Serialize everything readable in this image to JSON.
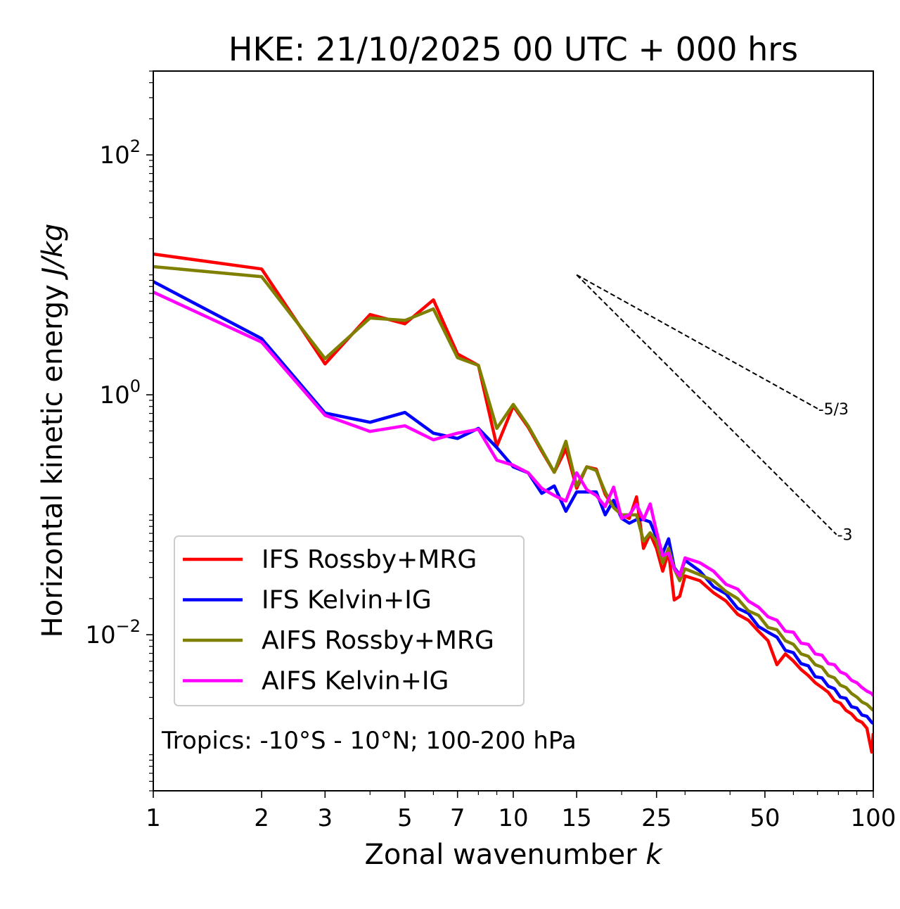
{
  "chart_data": {
    "type": "line",
    "title": "HKE: 21/10/2025 00 UTC + 000 hrs",
    "xlabel": "Zonal wavenumber k",
    "xlabel_main": "Zonal wavenumber ",
    "xlabel_var": "k",
    "ylabel_main": "Horizontal kinetic energy ",
    "ylabel_unit": "J/kg",
    "xscale": "log",
    "yscale": "log",
    "xlim": [
      1,
      100
    ],
    "ylim": [
      0.0005,
      500
    ],
    "xticks": [
      1,
      2,
      3,
      5,
      7,
      10,
      15,
      25,
      50,
      100
    ],
    "xtick_labels": [
      "1",
      "2",
      "3",
      "5",
      "7",
      "10",
      "15",
      "25",
      "50",
      "100"
    ],
    "yticks": [
      0.01,
      1,
      100
    ],
    "ytick_labels": [
      {
        "base": "10",
        "exp": "−2"
      },
      {
        "base": "10",
        "exp": "0"
      },
      {
        "base": "10",
        "exp": "2"
      }
    ],
    "annotation": "Tropics: -10°S - 10°N; 100-200 hPa",
    "legend_position": "lower-left",
    "x": [
      1,
      2,
      3,
      4,
      5,
      6,
      7,
      8,
      9,
      10,
      11,
      12,
      13,
      14,
      15,
      16,
      17,
      18,
      19,
      20,
      21,
      22,
      23,
      24,
      25,
      26,
      27,
      28,
      29,
      30,
      33,
      36,
      39,
      42,
      45,
      48,
      51,
      54,
      57,
      60,
      63,
      66,
      69,
      72,
      75,
      78,
      81,
      84,
      87,
      90,
      93,
      96,
      99,
      100
    ],
    "series": [
      {
        "name": "IFS Rossby+MRG",
        "color": "#ff0000",
        "values": [
          14.9,
          11.2,
          1.81,
          4.67,
          3.91,
          6.19,
          2.19,
          1.76,
          0.373,
          0.805,
          0.537,
          0.339,
          0.226,
          0.355,
          0.166,
          0.251,
          0.24,
          0.148,
          0.115,
          0.1,
          0.0933,
          0.141,
          0.0525,
          0.0692,
          0.0525,
          0.0339,
          0.049,
          0.0195,
          0.0209,
          0.0309,
          0.0282,
          0.0224,
          0.0191,
          0.0148,
          0.0132,
          0.0107,
          0.00891,
          0.00562,
          0.00692,
          0.00603,
          0.00513,
          0.00457,
          0.00398,
          0.00363,
          0.00331,
          0.00282,
          0.00269,
          0.00234,
          0.00219,
          0.00195,
          0.00186,
          0.00166,
          0.00105,
          0.00151
        ]
      },
      {
        "name": "IFS Kelvin+IG",
        "color": "#0000ff",
        "values": [
          8.79,
          2.94,
          0.705,
          0.59,
          0.713,
          0.479,
          0.433,
          0.525,
          0.363,
          0.251,
          0.224,
          0.151,
          0.174,
          0.107,
          0.155,
          0.155,
          0.155,
          0.1,
          0.132,
          0.0933,
          0.0851,
          0.0912,
          0.0912,
          0.0871,
          0.0646,
          0.0479,
          0.0631,
          0.0363,
          0.0316,
          0.0417,
          0.0339,
          0.0251,
          0.0219,
          0.0166,
          0.0151,
          0.0117,
          0.0105,
          0.00955,
          0.00741,
          0.00708,
          0.00575,
          0.0055,
          0.00447,
          0.00437,
          0.00372,
          0.00355,
          0.00302,
          0.00295,
          0.00251,
          0.00245,
          0.00214,
          0.00209,
          0.00186,
          0.00182
        ]
      },
      {
        "name": "AIFS Rossby+MRG",
        "color": "#808000",
        "values": [
          11.7,
          9.66,
          2.0,
          4.37,
          4.17,
          5.2,
          2.04,
          1.76,
          0.525,
          0.832,
          0.55,
          0.347,
          0.226,
          0.41,
          0.174,
          0.251,
          0.234,
          0.155,
          0.115,
          0.1,
          0.1,
          0.1,
          0.0603,
          0.0708,
          0.0603,
          0.0398,
          0.0525,
          0.0355,
          0.0282,
          0.0355,
          0.0316,
          0.0282,
          0.0229,
          0.02,
          0.0158,
          0.0145,
          0.0115,
          0.011,
          0.00891,
          0.00832,
          0.00692,
          0.00661,
          0.00562,
          0.00537,
          0.00457,
          0.00437,
          0.0038,
          0.00363,
          0.00324,
          0.00302,
          0.00275,
          0.00263,
          0.0024,
          0.00234
        ]
      },
      {
        "name": "AIFS Kelvin+IG",
        "color": "#ff00ff",
        "values": [
          7.18,
          2.75,
          0.676,
          0.495,
          0.552,
          0.422,
          0.479,
          0.516,
          0.285,
          0.259,
          0.224,
          0.166,
          0.145,
          0.13,
          0.224,
          0.162,
          0.145,
          0.117,
          0.17,
          0.0933,
          0.1,
          0.122,
          0.0912,
          0.123,
          0.0724,
          0.0457,
          0.0479,
          0.0355,
          0.0309,
          0.0437,
          0.0398,
          0.0339,
          0.0263,
          0.024,
          0.0191,
          0.017,
          0.0141,
          0.0132,
          0.0107,
          0.0105,
          0.00851,
          0.00832,
          0.00692,
          0.00676,
          0.00575,
          0.00562,
          0.0049,
          0.00468,
          0.00417,
          0.00398,
          0.00363,
          0.00339,
          0.00324,
          0.00309
        ]
      }
    ],
    "reference_lines": [
      {
        "label": "-5/3",
        "slope": -1.6667,
        "k_start": 15,
        "k_end": 70,
        "e_start": 10
      },
      {
        "label": "-3",
        "slope": -3,
        "k_start": 15,
        "k_end": 79,
        "e_start": 10
      }
    ]
  }
}
